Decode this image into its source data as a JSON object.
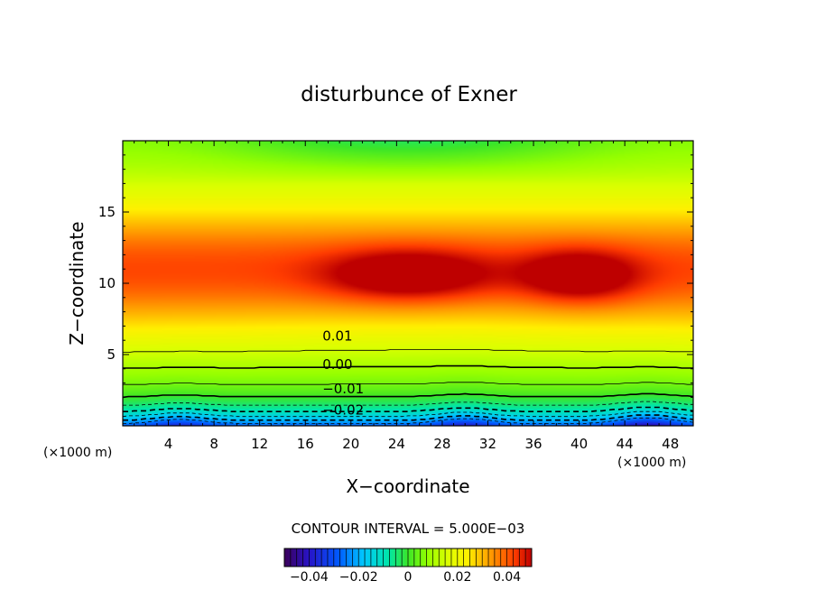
{
  "chart_data": {
    "type": "heatmap",
    "title": "disturbunce of Exner",
    "xlabel": "X−coordinate",
    "ylabel": "Z−coordinate",
    "x_unit_left": "(×1000 m)",
    "x_unit_right": "(×1000 m)",
    "xlim": [
      0,
      50
    ],
    "ylim": [
      0,
      20
    ],
    "x_ticks": [
      4,
      8,
      12,
      16,
      20,
      24,
      28,
      32,
      36,
      40,
      44,
      48
    ],
    "y_ticks": [
      5,
      10,
      15
    ],
    "contour_interval_text": "CONTOUR INTERVAL = 5.000E−03",
    "contour_interval": 0.005,
    "contour_labels": [
      {
        "text": "0.01",
        "value": 0.01,
        "x": 17.5,
        "y": 6.3
      },
      {
        "text": "0.00",
        "value": 0.0,
        "x": 17.5,
        "y": 4.3
      },
      {
        "text": "−0.01",
        "value": -0.01,
        "x": 17.5,
        "y": 2.6
      },
      {
        "text": "−0.02",
        "value": -0.02,
        "x": 17.5,
        "y": 1.1
      }
    ],
    "colorbar": {
      "range": [
        -0.05,
        0.05
      ],
      "tick_values": [
        -0.04,
        -0.02,
        0,
        0.02,
        0.04
      ],
      "tick_labels": [
        "−0.04",
        "−0.02",
        "0",
        "0.02",
        "0.04"
      ]
    },
    "contour_levels": [
      -0.025,
      -0.02,
      -0.015,
      -0.01,
      -0.005,
      0.0,
      0.005,
      0.01,
      0.015
    ],
    "grid": false,
    "legend": "colorbar bottom-center"
  }
}
